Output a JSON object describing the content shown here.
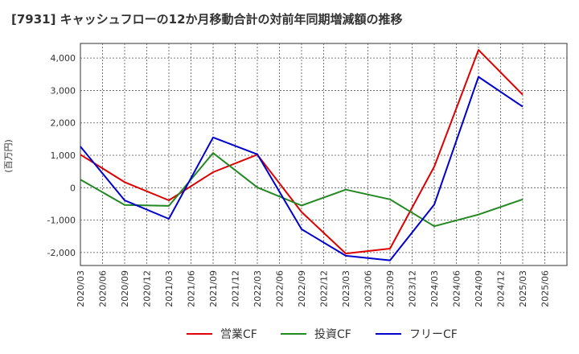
{
  "title": "[7931]  キャッシュフローの12か月移動合計の対前年同期増減額の推移",
  "chart_data": {
    "type": "line",
    "title": "[7931]  キャッシュフローの12か月移動合計の対前年同期増減額の推移",
    "xlabel": "",
    "ylabel": "(百万円)",
    "x_ticks": [
      "2020/03",
      "2020/06",
      "2020/09",
      "2020/12",
      "2021/03",
      "2021/06",
      "2021/09",
      "2021/12",
      "2022/03",
      "2022/06",
      "2022/09",
      "2022/12",
      "2023/03",
      "2023/06",
      "2023/09",
      "2023/12",
      "2024/03",
      "2024/06",
      "2024/09",
      "2024/12",
      "2025/03",
      "2025/06"
    ],
    "y_ticks": [
      4000,
      3000,
      2000,
      1000,
      0,
      -1000,
      -2000
    ],
    "y_tick_labels": [
      "4,000",
      "3,000",
      "2,000",
      "1,000",
      "0",
      "-1,000",
      "-2,000"
    ],
    "ylim": [
      -2400,
      4450
    ],
    "grid": true,
    "legend_position": "bottom",
    "series": [
      {
        "name": "営業CF",
        "color": "#dd0000",
        "x": [
          "2020/03",
          "2020/09",
          "2021/03",
          "2021/09",
          "2022/03",
          "2022/09",
          "2023/03",
          "2023/09",
          "2024/03",
          "2024/09",
          "2025/03"
        ],
        "values": [
          1020,
          170,
          -390,
          480,
          1020,
          -750,
          -2030,
          -1880,
          650,
          4250,
          2870
        ]
      },
      {
        "name": "投資CF",
        "color": "#228822",
        "x": [
          "2020/03",
          "2020/09",
          "2021/03",
          "2021/09",
          "2022/03",
          "2022/09",
          "2023/03",
          "2023/09",
          "2024/03",
          "2024/09",
          "2025/03"
        ],
        "values": [
          250,
          -530,
          -560,
          1070,
          10,
          -550,
          -60,
          -360,
          -1190,
          -830,
          -360
        ]
      },
      {
        "name": "フリーCF",
        "color": "#0000cc",
        "x": [
          "2020/03",
          "2020/09",
          "2021/03",
          "2021/09",
          "2022/03",
          "2022/09",
          "2023/03",
          "2023/09",
          "2024/03",
          "2024/09",
          "2025/03"
        ],
        "values": [
          1270,
          -390,
          -960,
          1550,
          1030,
          -1280,
          -2100,
          -2240,
          -520,
          3420,
          2500
        ]
      }
    ]
  }
}
